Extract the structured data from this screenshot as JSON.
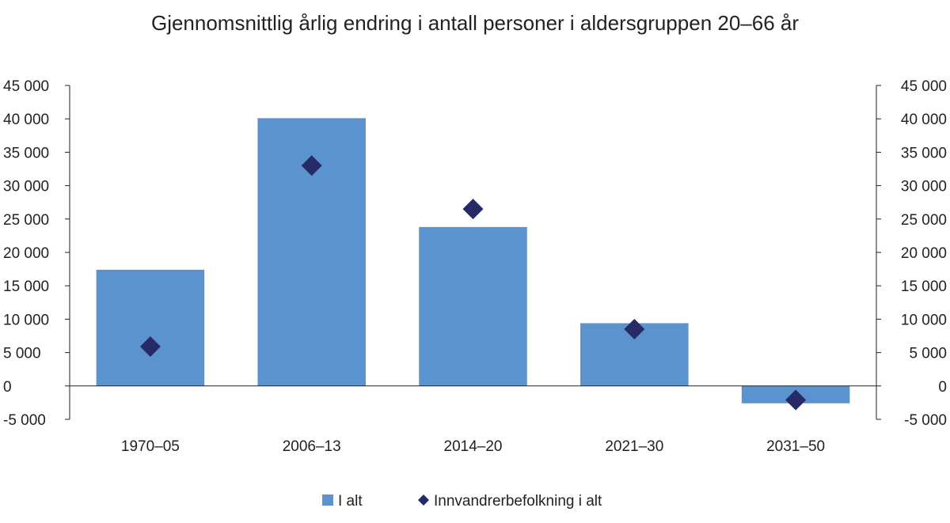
{
  "chart_data": {
    "type": "bar",
    "title": "Gjennomsnittlig årlig endring i antall personer i aldersgruppen 20–66 år",
    "categories": [
      "1970–05",
      "2006–13",
      "2014–20",
      "2021–30",
      "2031–50"
    ],
    "series": [
      {
        "name": "I alt",
        "type": "bar",
        "color": "#5b93cf",
        "values": [
          17400,
          40100,
          23800,
          9400,
          -2600
        ]
      },
      {
        "name": "Innvandrerbefolkning i alt",
        "type": "scatter",
        "marker": "diamond",
        "color": "#262a66",
        "values": [
          5900,
          33000,
          26500,
          8500,
          -2100
        ]
      }
    ],
    "ylim": [
      -5000,
      45000
    ],
    "yticks": [
      -5000,
      0,
      5000,
      10000,
      15000,
      20000,
      25000,
      30000,
      35000,
      40000,
      45000
    ],
    "ytick_labels": [
      "-5 000",
      "0",
      "5 000",
      "10 000",
      "15 000",
      "20 000",
      "25 000",
      "30 000",
      "35 000",
      "40 000",
      "45 000"
    ],
    "secondary_axis": true,
    "grid": false,
    "legend_position": "bottom"
  }
}
